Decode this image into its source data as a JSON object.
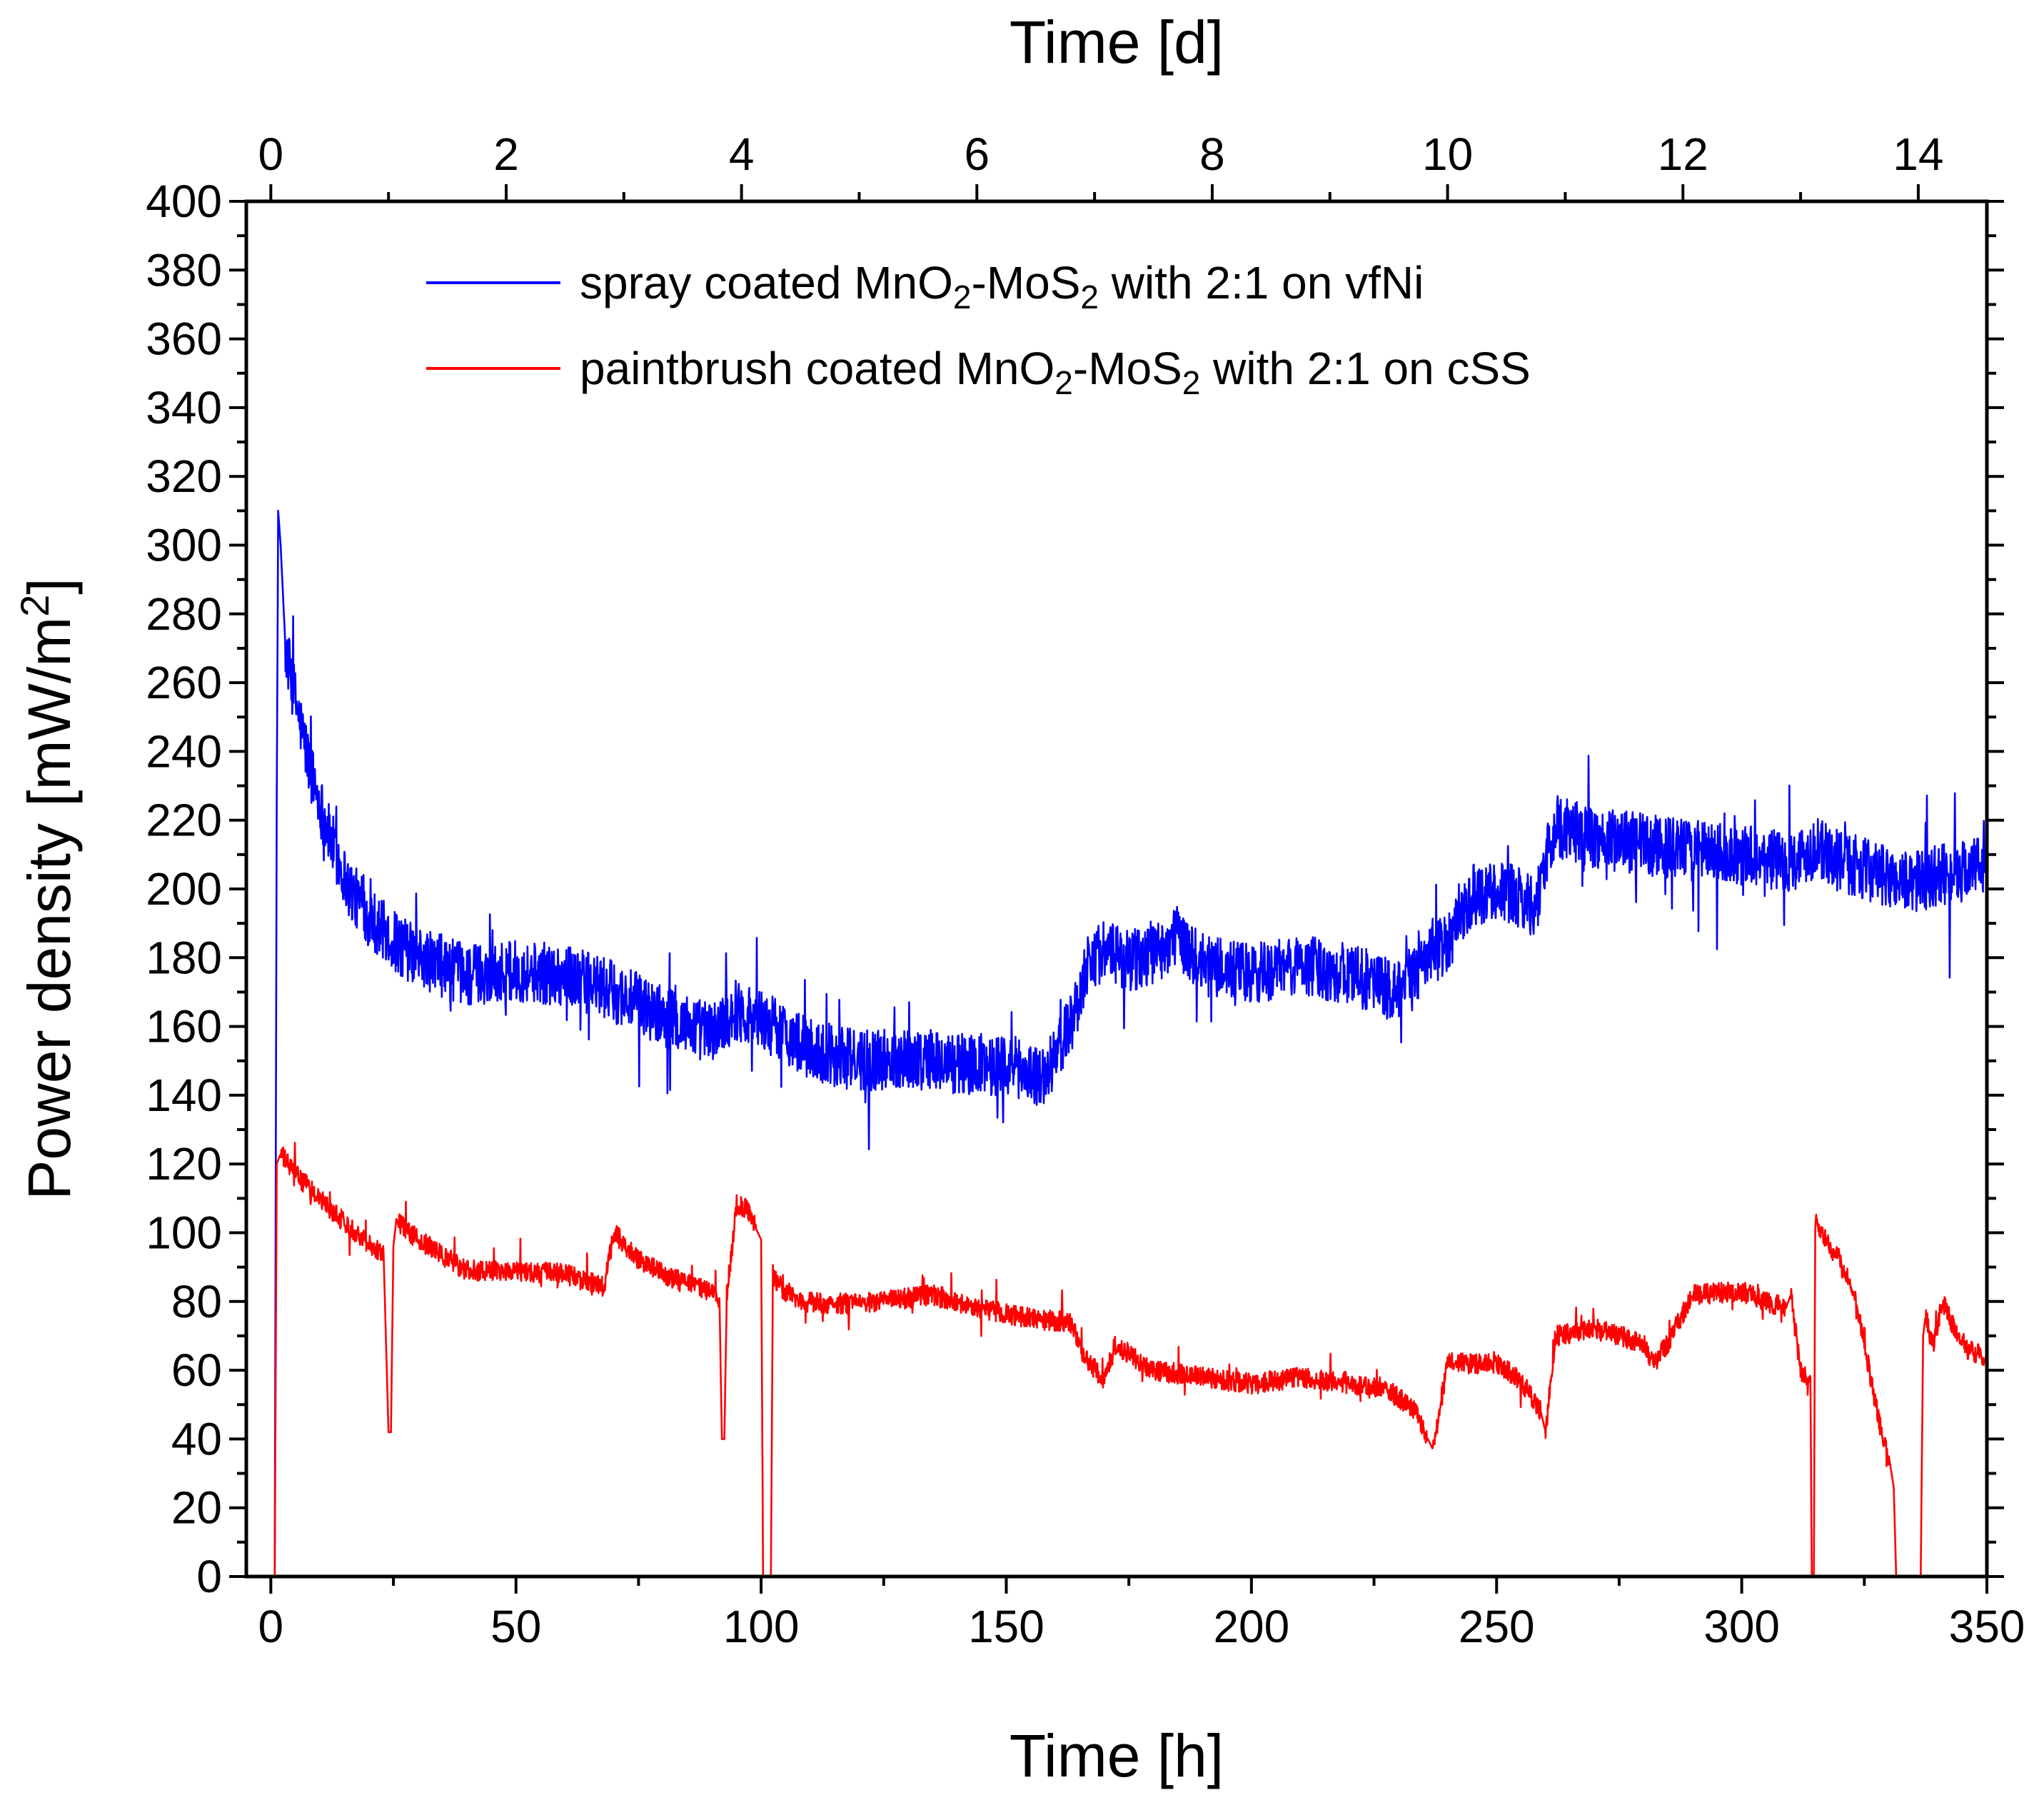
{
  "chart_data": {
    "type": "line",
    "xlabel": "Time [h]",
    "x2label": "Time [d]",
    "ylabel": "Power density [mW/m",
    "ylabel_sup": "2",
    "ylabel_close": "]",
    "xlim": [
      -5,
      350
    ],
    "x2lim": [
      -0.2083,
      14.583
    ],
    "ylim": [
      0,
      400
    ],
    "xticks": [
      "0",
      "50",
      "100",
      "150",
      "200",
      "250",
      "300",
      "350"
    ],
    "x2ticks": [
      "0",
      "2",
      "4",
      "6",
      "8",
      "10",
      "12",
      "14"
    ],
    "yticks": [
      "0",
      "20",
      "40",
      "60",
      "80",
      "100",
      "120",
      "140",
      "160",
      "180",
      "200",
      "220",
      "240",
      "260",
      "280",
      "300",
      "320",
      "340",
      "360",
      "380",
      "400"
    ],
    "legend_position": "top-center",
    "series": [
      {
        "name": "spray coated MnO2-MoS2 with 2:1 on vfNi",
        "legend": {
          "a": "spray coated MnO",
          "s1": "2",
          "b": "-MoS",
          "s2": "2",
          "c": " with 2:1 on vfNi"
        },
        "color": "#0000ff",
        "noise": 9,
        "x": [
          0,
          0.8,
          1.2,
          1.5,
          2,
          3,
          5,
          8,
          12,
          16,
          20,
          25,
          30,
          40,
          50,
          60,
          70,
          80,
          90,
          95,
          100,
          105,
          110,
          120,
          130,
          140,
          150,
          158,
          161,
          163,
          165,
          167,
          170,
          175,
          180,
          185,
          190,
          200,
          210,
          220,
          230,
          235,
          240,
          245,
          250,
          255,
          258,
          260,
          262,
          265,
          270,
          280,
          290,
          300,
          310,
          315,
          320,
          325,
          330,
          335,
          340,
          345,
          350
        ],
        "y": [
          0,
          0,
          225,
          310,
          300,
          270,
          255,
          235,
          215,
          200,
          192,
          185,
          180,
          175,
          176,
          175,
          170,
          163,
          158,
          165,
          162,
          158,
          153,
          150,
          151,
          149,
          149,
          145,
          155,
          160,
          170,
          180,
          182,
          179,
          181,
          186,
          178,
          175,
          178,
          175,
          170,
          178,
          185,
          198,
          200,
          197,
          195,
          208,
          218,
          217,
          215,
          213,
          211,
          210,
          208,
          212,
          208,
          206,
          203,
          202,
          204,
          205,
          208
        ]
      },
      {
        "name": "paintbrush coated MnO2-MoS2 with 2:1 on cSS",
        "legend": {
          "a": "paintbrush coated MnO",
          "s1": "2",
          "b": "-MoS",
          "s2": "2",
          "c": " with 2:1 on cSS"
        },
        "color": "#ff0000",
        "noise": 3,
        "x": [
          0,
          0.8,
          1.2,
          2,
          5,
          10,
          15,
          20,
          23,
          24,
          24.5,
          25,
          25.6,
          26,
          30,
          40,
          50,
          60,
          68,
          70,
          75,
          80,
          85,
          90,
          91.5,
          92,
          92.5,
          93,
          95,
          97,
          99,
          100,
          100.4,
          102,
          102.4,
          104,
          108,
          115,
          125,
          135,
          145,
          155,
          163,
          166,
          170,
          172,
          180,
          190,
          200,
          210,
          220,
          228,
          233,
          236,
          237,
          240,
          250,
          255,
          259,
          260,
          262,
          270,
          280,
          282,
          285,
          290,
          300,
          305,
          309,
          310,
          312,
          314,
          314.3,
          314.7,
          315,
          317,
          320,
          323,
          325,
          328,
          330,
          331,
          331.5,
          333,
          335,
          336.5,
          337,
          337.5,
          339,
          341,
          343,
          346,
          350
        ],
        "y": [
          0,
          0,
          120,
          123,
          117,
          110,
          103,
          97,
          94,
          42,
          42,
          96,
          104,
          103,
          98,
          89,
          89,
          88,
          84,
          100,
          92,
          88,
          85,
          83,
          81,
          40,
          40,
          82,
          108,
          107,
          101,
          98,
          0,
          0,
          88,
          84,
          80,
          79,
          80,
          82,
          78,
          75,
          74,
          64,
          57,
          67,
          60,
          58,
          56,
          58,
          56,
          54,
          49,
          40,
          37,
          62,
          62,
          57,
          48,
          42,
          70,
          72,
          68,
          62,
          68,
          82,
          83,
          80,
          78,
          82,
          60,
          58,
          0,
          0,
          103,
          98,
          92,
          82,
          68,
          45,
          35,
          26,
          0,
          0,
          0,
          0,
          70,
          76,
          67,
          80,
          73,
          66,
          64
        ]
      }
    ]
  }
}
